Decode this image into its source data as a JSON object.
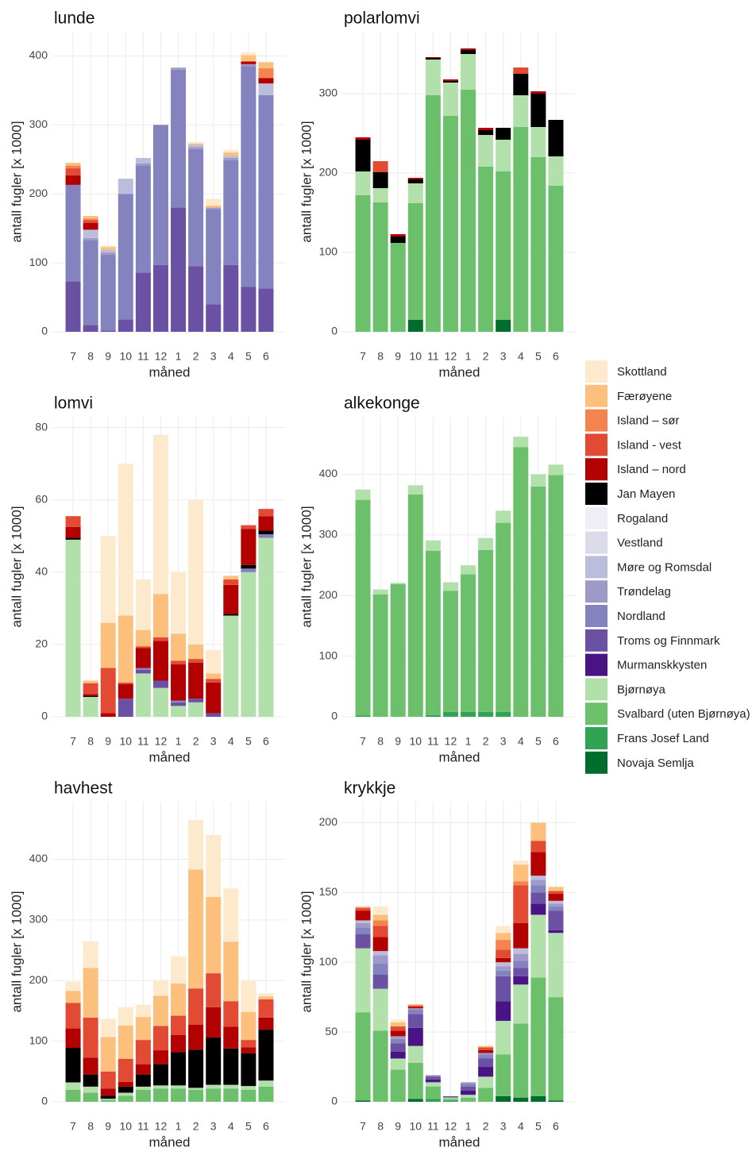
{
  "chart_data": [
    {
      "type": "bar",
      "title": "lunde",
      "x_label": "måned",
      "y_label": "antall fugler [x 1000]",
      "categories": [
        "7",
        "8",
        "9",
        "10",
        "11",
        "12",
        "1",
        "2",
        "3",
        "4",
        "5",
        "6"
      ],
      "ylim": [
        0,
        435
      ],
      "yticks": [
        0,
        100,
        200,
        300,
        400
      ],
      "series": [
        {
          "name": "Troms og Finnmark",
          "color": "#6a51a3",
          "values": [
            73,
            10,
            2,
            18,
            86,
            97,
            180,
            95,
            40,
            97,
            65,
            63
          ]
        },
        {
          "name": "Nordland",
          "color": "#8582c0",
          "values": [
            140,
            123,
            110,
            182,
            155,
            203,
            200,
            170,
            138,
            152,
            320,
            280
          ]
        },
        {
          "name": "Trøndelag",
          "color": "#9e9ac8",
          "values": [
            0,
            3,
            3,
            0,
            3,
            0,
            3,
            3,
            2,
            3,
            3,
            0
          ]
        },
        {
          "name": "Møre og Romsdal",
          "color": "#bcbddc",
          "values": [
            0,
            12,
            4,
            22,
            8,
            0,
            0,
            3,
            0,
            3,
            0,
            17
          ]
        },
        {
          "name": "Island – nord",
          "color": "#b30000",
          "values": [
            14,
            10,
            0,
            0,
            0,
            0,
            0,
            0,
            0,
            0,
            4,
            8
          ]
        },
        {
          "name": "Island - vest",
          "color": "#e34a33",
          "values": [
            10,
            4,
            0,
            0,
            0,
            0,
            0,
            0,
            0,
            0,
            0,
            0
          ]
        },
        {
          "name": "Island – sør",
          "color": "#f4834f",
          "values": [
            4,
            2,
            0,
            0,
            0,
            0,
            0,
            0,
            0,
            0,
            0,
            14
          ]
        },
        {
          "name": "Færøyene",
          "color": "#fdc07c",
          "values": [
            4,
            4,
            4,
            0,
            0,
            0,
            0,
            2,
            3,
            5,
            9,
            9
          ]
        },
        {
          "name": "Skottland",
          "color": "#fde9cc",
          "values": [
            0,
            0,
            2,
            0,
            0,
            0,
            0,
            2,
            10,
            4,
            4,
            0
          ]
        }
      ]
    },
    {
      "type": "bar",
      "title": "polarlomvi",
      "x_label": "måned",
      "y_label": "antall fugler [x 1000]",
      "categories": [
        "7",
        "8",
        "9",
        "10",
        "11",
        "12",
        "1",
        "2",
        "3",
        "4",
        "5",
        "6"
      ],
      "ylim": [
        0,
        378
      ],
      "yticks": [
        0,
        100,
        200,
        300
      ],
      "series": [
        {
          "name": "Novaja Semlja",
          "color": "#006d2c",
          "values": [
            0,
            0,
            0,
            15,
            0,
            0,
            0,
            0,
            15,
            0,
            0,
            0
          ]
        },
        {
          "name": "Svalbard (uten Bjørnøya)",
          "color": "#6cc06c",
          "values": [
            172,
            163,
            112,
            147,
            298,
            272,
            305,
            208,
            187,
            258,
            220,
            184
          ]
        },
        {
          "name": "Bjørnøya",
          "color": "#b2e0ab",
          "values": [
            30,
            18,
            0,
            25,
            45,
            42,
            45,
            40,
            40,
            40,
            38,
            37
          ]
        },
        {
          "name": "Jan Mayen",
          "color": "#000000",
          "values": [
            40,
            20,
            8,
            5,
            2,
            2,
            5,
            6,
            15,
            27,
            42,
            46
          ]
        },
        {
          "name": "Island – nord",
          "color": "#b30000",
          "values": [
            3,
            0,
            3,
            2,
            1,
            2,
            2,
            3,
            0,
            0,
            3,
            0
          ]
        },
        {
          "name": "Island - vest",
          "color": "#e34a33",
          "values": [
            0,
            14,
            0,
            0,
            0,
            0,
            0,
            0,
            0,
            8,
            0,
            0
          ]
        }
      ]
    },
    {
      "type": "bar",
      "title": "lomvi",
      "x_label": "måned",
      "y_label": "antall fugler [x 1000]",
      "categories": [
        "7",
        "8",
        "9",
        "10",
        "11",
        "12",
        "1",
        "2",
        "3",
        "4",
        "5",
        "6"
      ],
      "ylim": [
        0,
        83
      ],
      "yticks": [
        0,
        20,
        40,
        60,
        80
      ],
      "series": [
        {
          "name": "Bjørnøya",
          "color": "#b2e0ab",
          "values": [
            49,
            5.5,
            0,
            0,
            12,
            8,
            3,
            4,
            0,
            28,
            40,
            49.5
          ]
        },
        {
          "name": "Troms og Finnmark",
          "color": "#6a51a3",
          "values": [
            0,
            0,
            0,
            5,
            1,
            2,
            1,
            1,
            1,
            0,
            0,
            0
          ]
        },
        {
          "name": "Nordland",
          "color": "#8582c0",
          "values": [
            0,
            0,
            0,
            0,
            0.5,
            0,
            0.5,
            0,
            0,
            0,
            1,
            1
          ]
        },
        {
          "name": "Jan Mayen",
          "color": "#000000",
          "values": [
            0.5,
            0.3,
            0,
            0,
            0,
            0,
            0,
            0,
            0,
            0.5,
            1,
            1
          ]
        },
        {
          "name": "Island – nord",
          "color": "#b30000",
          "values": [
            3,
            0.5,
            1,
            4,
            5.5,
            11,
            10,
            10,
            8.5,
            8,
            10,
            4
          ]
        },
        {
          "name": "Island - vest",
          "color": "#e34a33",
          "values": [
            3,
            3,
            12.5,
            0.5,
            0.5,
            1,
            1,
            1,
            1,
            1.5,
            1,
            2
          ]
        },
        {
          "name": "Færøyene",
          "color": "#fdc07c",
          "values": [
            0,
            0.7,
            12.5,
            18.5,
            4.5,
            12,
            7.5,
            4,
            1.5,
            1,
            0,
            0
          ]
        },
        {
          "name": "Skottland",
          "color": "#fde9cc",
          "values": [
            0,
            0,
            24,
            42,
            14,
            44,
            17,
            40,
            6.5,
            0,
            0,
            0
          ]
        }
      ]
    },
    {
      "type": "bar",
      "title": "alkekonge",
      "x_label": "måned",
      "y_label": "antall fugler [x 1000]",
      "categories": [
        "7",
        "8",
        "9",
        "10",
        "11",
        "12",
        "1",
        "2",
        "3",
        "4",
        "5",
        "6"
      ],
      "ylim": [
        0,
        495
      ],
      "yticks": [
        0,
        100,
        200,
        300,
        400
      ],
      "series": [
        {
          "name": "Frans Josef Land",
          "color": "#31a354",
          "values": [
            2,
            0,
            0,
            0,
            3,
            8,
            8,
            8,
            8,
            0,
            0,
            0
          ]
        },
        {
          "name": "Svalbard (uten Bjørnøya)",
          "color": "#6cc06c",
          "values": [
            356,
            202,
            219,
            367,
            271,
            200,
            227,
            267,
            312,
            445,
            380,
            399
          ]
        },
        {
          "name": "Bjørnøya",
          "color": "#b2e0ab",
          "values": [
            17,
            8,
            2,
            15,
            17,
            14,
            15,
            20,
            20,
            17,
            20,
            17
          ]
        }
      ]
    },
    {
      "type": "bar",
      "title": "havhest",
      "x_label": "måned",
      "y_label": "antall fugler [x 1000]",
      "categories": [
        "7",
        "8",
        "9",
        "10",
        "11",
        "12",
        "1",
        "2",
        "3",
        "4",
        "5",
        "6"
      ],
      "ylim": [
        0,
        495
      ],
      "yticks": [
        0,
        100,
        200,
        300,
        400
      ],
      "series": [
        {
          "name": "Svalbard (uten Bjørnøya)",
          "color": "#6cc06c",
          "values": [
            20,
            15,
            3,
            10,
            20,
            22,
            22,
            20,
            22,
            22,
            20,
            25
          ]
        },
        {
          "name": "Bjørnøya",
          "color": "#b2e0ab",
          "values": [
            12,
            10,
            2,
            5,
            5,
            5,
            5,
            3,
            6,
            6,
            6,
            10
          ]
        },
        {
          "name": "Jan Mayen",
          "color": "#000000",
          "values": [
            57,
            20,
            5,
            10,
            20,
            35,
            55,
            63,
            78,
            60,
            54,
            84
          ]
        },
        {
          "name": "Island – nord",
          "color": "#b30000",
          "values": [
            32,
            28,
            12,
            8,
            17,
            23,
            28,
            41,
            50,
            36,
            10,
            20
          ]
        },
        {
          "name": "Island - vest",
          "color": "#e34a33",
          "values": [
            42,
            66,
            28,
            38,
            40,
            40,
            32,
            60,
            56,
            42,
            12,
            30
          ]
        },
        {
          "name": "Færøyene",
          "color": "#fdc07c",
          "values": [
            20,
            82,
            57,
            55,
            38,
            50,
            53,
            196,
            126,
            98,
            46,
            5
          ]
        },
        {
          "name": "Skottland",
          "color": "#fde9cc",
          "values": [
            15,
            44,
            30,
            30,
            20,
            25,
            45,
            82,
            102,
            88,
            52,
            5
          ]
        }
      ]
    },
    {
      "type": "bar",
      "title": "krykkje",
      "x_label": "måned",
      "y_label": "antall fugler [x 1000]",
      "categories": [
        "7",
        "8",
        "9",
        "10",
        "11",
        "12",
        "1",
        "2",
        "3",
        "4",
        "5",
        "6"
      ],
      "ylim": [
        0,
        215
      ],
      "yticks": [
        0,
        50,
        100,
        150,
        200
      ],
      "series": [
        {
          "name": "Novaja Semlja",
          "color": "#006d2c",
          "values": [
            1,
            0,
            0,
            2,
            0,
            0,
            0,
            0,
            4,
            3,
            4,
            1
          ]
        },
        {
          "name": "Frans Josef Land",
          "color": "#31a354",
          "values": [
            0,
            0,
            0,
            0,
            2,
            1,
            0,
            0,
            0,
            0,
            0,
            0
          ]
        },
        {
          "name": "Svalbard (uten Bjørnøya)",
          "color": "#6cc06c",
          "values": [
            63,
            51,
            23,
            26,
            9,
            1,
            3,
            10,
            30,
            53,
            85,
            74
          ]
        },
        {
          "name": "Bjørnøya",
          "color": "#b2e0ab",
          "values": [
            46,
            30,
            8,
            12,
            3,
            1,
            2,
            8,
            24,
            28,
            45,
            46
          ]
        },
        {
          "name": "Murmanskkysten",
          "color": "#4a1486",
          "values": [
            0,
            0,
            5,
            13,
            2,
            0,
            3,
            7,
            14,
            6,
            8,
            2
          ]
        },
        {
          "name": "Troms og Finnmark",
          "color": "#6a51a3",
          "values": [
            10,
            10,
            6,
            10,
            2,
            1,
            3,
            6,
            18,
            6,
            8,
            14
          ]
        },
        {
          "name": "Nordland",
          "color": "#8582c0",
          "values": [
            5,
            8,
            3,
            3,
            1,
            0,
            2,
            3,
            4,
            5,
            5,
            3
          ]
        },
        {
          "name": "Trøndelag",
          "color": "#9e9ac8",
          "values": [
            3,
            6,
            2,
            1,
            0,
            0,
            1,
            1,
            3,
            5,
            4,
            2
          ]
        },
        {
          "name": "Møre og Romsdal",
          "color": "#bcbddc",
          "values": [
            2,
            3,
            0,
            0,
            0,
            0,
            0,
            0,
            3,
            4,
            3,
            2
          ]
        },
        {
          "name": "Island – nord",
          "color": "#b30000",
          "values": [
            7,
            10,
            4,
            1,
            0,
            0,
            0,
            2,
            3,
            18,
            17,
            5
          ]
        },
        {
          "name": "Island - vest",
          "color": "#e34a33",
          "values": [
            2,
            8,
            3,
            1,
            0,
            0,
            0,
            2,
            6,
            27,
            8,
            2
          ]
        },
        {
          "name": "Island – sør",
          "color": "#f4834f",
          "values": [
            0,
            4,
            0,
            0,
            0,
            0,
            0,
            0,
            7,
            3,
            0,
            0
          ]
        },
        {
          "name": "Færøyene",
          "color": "#fdc07c",
          "values": [
            1,
            4,
            3,
            1,
            0,
            0,
            0,
            1,
            5,
            12,
            13,
            3
          ]
        },
        {
          "name": "Skottland",
          "color": "#fde9cc",
          "values": [
            0,
            6,
            2,
            0,
            0,
            0,
            0,
            0,
            5,
            3,
            0,
            0
          ]
        }
      ]
    }
  ],
  "legend": {
    "items": [
      {
        "name": "Skottland",
        "color": "#fde9cc"
      },
      {
        "name": "Færøyene",
        "color": "#fdc07c"
      },
      {
        "name": "Island – sør",
        "color": "#f4834f"
      },
      {
        "name": "Island - vest",
        "color": "#e34a33"
      },
      {
        "name": "Island – nord",
        "color": "#b30000"
      },
      {
        "name": "Jan Mayen",
        "color": "#000000"
      },
      {
        "name": "Rogaland",
        "color": "#efedf5"
      },
      {
        "name": "Vestland",
        "color": "#dadaeb"
      },
      {
        "name": "Møre og Romsdal",
        "color": "#bcbddc"
      },
      {
        "name": "Trøndelag",
        "color": "#9e9ac8"
      },
      {
        "name": "Nordland",
        "color": "#8582c0"
      },
      {
        "name": "Troms og Finnmark",
        "color": "#6a51a3"
      },
      {
        "name": "Murmanskkysten",
        "color": "#4a1486"
      },
      {
        "name": "Bjørnøya",
        "color": "#b2e0ab"
      },
      {
        "name": "Svalbard (uten Bjørnøya)",
        "color": "#6cc06c"
      },
      {
        "name": "Frans Josef Land",
        "color": "#31a354"
      },
      {
        "name": "Novaja Semlja",
        "color": "#006d2c"
      }
    ]
  }
}
